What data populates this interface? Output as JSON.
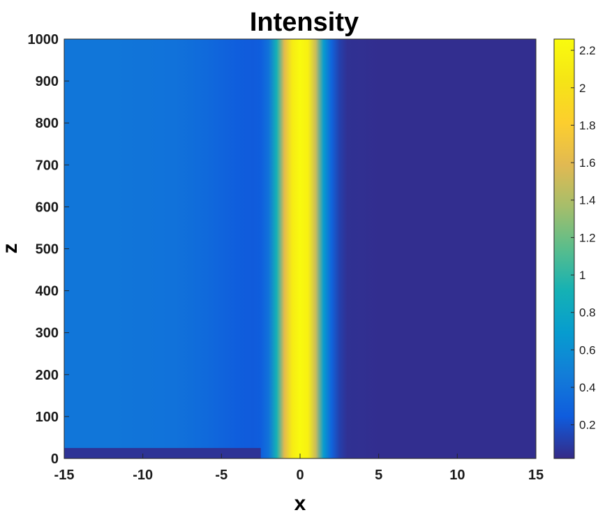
{
  "chart_data": {
    "type": "heatmap",
    "title": "Intensity",
    "xlabel": "x",
    "ylabel": "z",
    "xlim": [
      -15,
      15
    ],
    "ylim": [
      0,
      1000
    ],
    "xticks": [
      "-15",
      "-10",
      "-5",
      "0",
      "5",
      "10",
      "15"
    ],
    "yticks": [
      "0",
      "100",
      "200",
      "300",
      "400",
      "500",
      "600",
      "700",
      "800",
      "900",
      "1000"
    ],
    "colorbar": {
      "colormap": "parula",
      "range": [
        0.02,
        2.26
      ],
      "ticks": [
        "0.2",
        "0.4",
        "0.6",
        "0.8",
        "1",
        "1.2",
        "1.4",
        "1.6",
        "1.8",
        "2",
        "2.2"
      ]
    },
    "profile_x": [
      -15,
      -12,
      -10,
      -8,
      -6,
      -5,
      -4,
      -3,
      -2.5,
      -2,
      -1.5,
      -1,
      -0.5,
      0,
      0.5,
      1,
      1.5,
      2,
      2.5,
      3,
      5,
      10,
      15
    ],
    "profile_intensity": [
      0.42,
      0.42,
      0.41,
      0.39,
      0.34,
      0.3,
      0.26,
      0.24,
      0.26,
      0.4,
      0.9,
      1.6,
      2.1,
      2.25,
      2.15,
      1.5,
      0.7,
      0.3,
      0.12,
      0.05,
      0.04,
      0.04,
      0.04
    ],
    "bottom_region": {
      "z": [
        0,
        25
      ],
      "x": [
        -15,
        -2.5
      ],
      "intensity": 0.06
    }
  }
}
